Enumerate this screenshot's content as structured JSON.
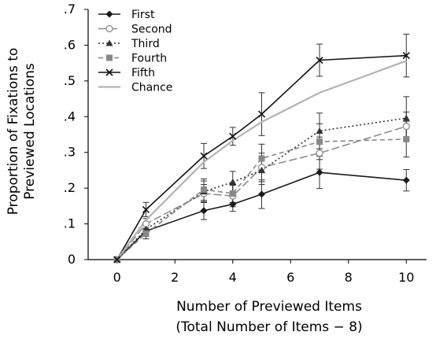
{
  "chart_data": {
    "type": "line",
    "x": [
      0,
      1,
      3,
      4,
      5,
      7,
      10
    ],
    "xticks": [
      "0",
      "2",
      "4",
      "6",
      "8",
      "10"
    ],
    "xtick_values": [
      0,
      2,
      4,
      6,
      8,
      10
    ],
    "yticks": [
      "0",
      ".1",
      ".2",
      ".3",
      ".4",
      ".5",
      ".6",
      ".7"
    ],
    "ytick_values": [
      0,
      0.1,
      0.2,
      0.3,
      0.4,
      0.5,
      0.6,
      0.7
    ],
    "xlim": [
      -1,
      10.7
    ],
    "ylim": [
      0,
      0.7
    ],
    "ylabel_line1": "Proportion of Fixations to",
    "ylabel_line2": "Previewed Locations",
    "xlabel_line1": "Number of Previewed Items",
    "xlabel_line2": "(Total Number of Items − 8)",
    "legend_position": "top-left",
    "series": [
      {
        "name": "First",
        "color": "#1a1a1a",
        "dash": "",
        "marker": "diamond",
        "values": [
          0,
          0.08,
          0.137,
          0.155,
          0.183,
          0.244,
          0.222
        ],
        "errors": [
          0,
          0.015,
          0.025,
          0.02,
          0.04,
          0.045,
          0.03
        ]
      },
      {
        "name": "Second",
        "color": "#8c8c8c",
        "dash": "10,4",
        "marker": "circle-open",
        "values": [
          0,
          0.1,
          0.185,
          0.178,
          0.258,
          0.298,
          0.373
        ],
        "errors": [
          0,
          0.015,
          0.025,
          0.03,
          0.04,
          0.045,
          0.04
        ]
      },
      {
        "name": "Third",
        "color": "#333333",
        "dash": "2,3",
        "marker": "triangle",
        "values": [
          0,
          0.085,
          0.19,
          0.217,
          0.25,
          0.36,
          0.396
        ],
        "errors": [
          0,
          0.015,
          0.03,
          0.03,
          0.04,
          0.05,
          0.06
        ]
      },
      {
        "name": "Fourth",
        "color": "#888888",
        "dash": "6,4",
        "marker": "square",
        "values": [
          0,
          0.073,
          0.196,
          0.185,
          0.283,
          0.33,
          0.337
        ],
        "errors": [
          0,
          0.015,
          0.03,
          0.025,
          0.04,
          0.05,
          0.05
        ]
      },
      {
        "name": "Fifth",
        "color": "#111111",
        "dash": "",
        "marker": "x",
        "values": [
          0,
          0.14,
          0.29,
          0.345,
          0.407,
          0.558,
          0.571
        ],
        "errors": [
          0,
          0.02,
          0.035,
          0.025,
          0.06,
          0.045,
          0.06
        ]
      },
      {
        "name": "Chance",
        "color": "#b3b3b3",
        "dash": "",
        "marker": "none",
        "values": [
          0,
          0.111,
          0.273,
          0.333,
          0.385,
          0.467,
          0.556
        ],
        "errors": [
          0,
          0,
          0,
          0,
          0,
          0,
          0
        ]
      }
    ]
  }
}
